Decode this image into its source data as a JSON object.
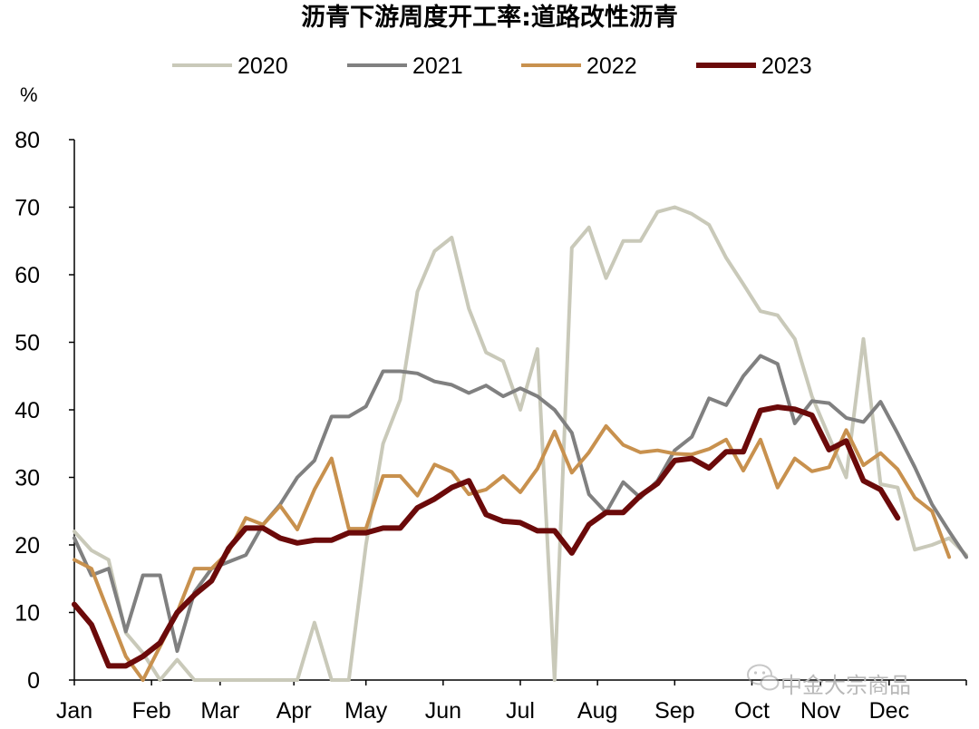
{
  "chart_data": {
    "type": "line",
    "title": "沥青下游周度开工率:道路改性沥青",
    "ylabel": "%",
    "ylim": [
      0,
      80
    ],
    "yticks": [
      0,
      10,
      20,
      30,
      40,
      50,
      60,
      70,
      80
    ],
    "x_range_weeks": [
      1,
      53
    ],
    "month_labels": [
      "Jan",
      "Feb",
      "Mar",
      "Apr",
      "May",
      "Jun",
      "Jul",
      "Aug",
      "Sep",
      "Oct",
      "Nov",
      "Dec"
    ],
    "month_start_week": [
      1,
      5.5,
      9.5,
      13.8,
      18,
      22.5,
      27,
      31.5,
      36,
      40.5,
      44.5,
      48.5
    ],
    "legend_position": "top",
    "grid": false,
    "x_unit": "week of year",
    "series": [
      {
        "name": "2020",
        "color": "#c9c9b9",
        "width": 4,
        "points": [
          [
            1,
            22
          ],
          [
            2,
            19.2
          ],
          [
            3,
            17.8
          ],
          [
            4,
            7
          ],
          [
            5,
            4
          ],
          [
            6,
            0
          ],
          [
            7,
            3
          ],
          [
            8,
            0
          ],
          [
            9,
            0
          ],
          [
            10,
            0
          ],
          [
            11,
            0
          ],
          [
            12,
            0
          ],
          [
            13,
            0
          ],
          [
            14,
            0
          ],
          [
            15,
            8.5
          ],
          [
            16,
            0
          ],
          [
            17,
            0
          ],
          [
            18,
            20
          ],
          [
            19,
            35
          ],
          [
            20,
            41.5
          ],
          [
            21,
            57.5
          ],
          [
            22,
            63.5
          ],
          [
            23,
            65.5
          ],
          [
            24,
            55
          ],
          [
            25,
            48.5
          ],
          [
            26,
            47.2
          ],
          [
            27,
            40
          ],
          [
            28,
            49
          ],
          [
            29,
            0
          ],
          [
            30,
            64
          ],
          [
            31,
            67
          ],
          [
            32,
            59.5
          ],
          [
            33,
            65
          ],
          [
            34,
            65
          ],
          [
            35,
            69.3
          ],
          [
            36,
            70
          ],
          [
            37,
            69
          ],
          [
            38,
            67.4
          ],
          [
            39,
            62.5
          ],
          [
            40,
            58.6
          ],
          [
            41,
            54.6
          ],
          [
            42,
            54
          ],
          [
            43,
            50.5
          ],
          [
            44,
            42
          ],
          [
            45,
            36
          ],
          [
            46,
            30
          ],
          [
            47,
            50.5
          ],
          [
            48,
            29
          ],
          [
            49,
            28.5
          ],
          [
            50,
            19.3
          ],
          [
            51,
            20
          ],
          [
            52,
            21
          ],
          [
            53,
            18.5
          ]
        ]
      },
      {
        "name": "2021",
        "color": "#808080",
        "width": 4,
        "points": [
          [
            1,
            21
          ],
          [
            2,
            15.5
          ],
          [
            3,
            16.5
          ],
          [
            4,
            7.2
          ],
          [
            5,
            15.5
          ],
          [
            6,
            15.5
          ],
          [
            7,
            4.3
          ],
          [
            8,
            13
          ],
          [
            9,
            16.5
          ],
          [
            10,
            17.5
          ],
          [
            11,
            18.5
          ],
          [
            12,
            23
          ],
          [
            13,
            26
          ],
          [
            14,
            30
          ],
          [
            15,
            32.5
          ],
          [
            16,
            39
          ],
          [
            17,
            39
          ],
          [
            18,
            40.5
          ],
          [
            19,
            45.7
          ],
          [
            20,
            45.7
          ],
          [
            21,
            45.4
          ],
          [
            22,
            44.2
          ],
          [
            23,
            43.7
          ],
          [
            24,
            42.5
          ],
          [
            25,
            43.6
          ],
          [
            26,
            42
          ],
          [
            27,
            43.2
          ],
          [
            28,
            42
          ],
          [
            29,
            40
          ],
          [
            30,
            36.6
          ],
          [
            31,
            27.5
          ],
          [
            32,
            24.8
          ],
          [
            33,
            29.3
          ],
          [
            34,
            27
          ],
          [
            35,
            29.5
          ],
          [
            36,
            34
          ],
          [
            37,
            36
          ],
          [
            38,
            41.7
          ],
          [
            39,
            40.7
          ],
          [
            40,
            45
          ],
          [
            41,
            48
          ],
          [
            42,
            46.8
          ],
          [
            43,
            38
          ],
          [
            44,
            41.3
          ],
          [
            45,
            41
          ],
          [
            46,
            38.8
          ],
          [
            47,
            38.2
          ],
          [
            48,
            41.2
          ],
          [
            49,
            36.5
          ],
          [
            50,
            31.5
          ],
          [
            51,
            26
          ],
          [
            52,
            22
          ],
          [
            53,
            18.2
          ]
        ]
      },
      {
        "name": "2022",
        "color": "#c8914e",
        "width": 4,
        "points": [
          [
            1,
            17.8
          ],
          [
            2,
            16.5
          ],
          [
            3,
            10
          ],
          [
            4,
            3.5
          ],
          [
            5,
            0
          ],
          [
            6,
            5
          ],
          [
            7,
            10
          ],
          [
            8,
            16.5
          ],
          [
            9,
            16.5
          ],
          [
            10,
            19
          ],
          [
            11,
            24
          ],
          [
            12,
            23
          ],
          [
            13,
            25.8
          ],
          [
            14,
            22.3
          ],
          [
            15,
            28.2
          ],
          [
            16,
            32.8
          ],
          [
            17,
            22.4
          ],
          [
            18,
            22.4
          ],
          [
            19,
            30.2
          ],
          [
            20,
            30.2
          ],
          [
            21,
            27.3
          ],
          [
            22,
            31.9
          ],
          [
            23,
            30.8
          ],
          [
            24,
            27.5
          ],
          [
            25,
            28.2
          ],
          [
            26,
            30.2
          ],
          [
            27,
            27.8
          ],
          [
            28,
            31.3
          ],
          [
            29,
            36.8
          ],
          [
            30,
            30.7
          ],
          [
            31,
            33.7
          ],
          [
            32,
            37.6
          ],
          [
            33,
            34.8
          ],
          [
            34,
            33.7
          ],
          [
            35,
            34
          ],
          [
            36,
            33.5
          ],
          [
            37,
            33.4
          ],
          [
            38,
            34.2
          ],
          [
            39,
            35.6
          ],
          [
            40,
            31
          ],
          [
            41,
            35.6
          ],
          [
            42,
            28.5
          ],
          [
            43,
            32.8
          ],
          [
            44,
            30.9
          ],
          [
            45,
            31.5
          ],
          [
            46,
            37
          ],
          [
            47,
            31.8
          ],
          [
            48,
            33.6
          ],
          [
            49,
            31.2
          ],
          [
            50,
            27
          ],
          [
            51,
            25
          ],
          [
            52,
            18.2
          ]
        ]
      },
      {
        "name": "2023",
        "color": "#6b0a0a",
        "width": 6,
        "points": [
          [
            1,
            11.2
          ],
          [
            2,
            8.2
          ],
          [
            3,
            2.1
          ],
          [
            4,
            2.1
          ],
          [
            5,
            3.5
          ],
          [
            6,
            5.5
          ],
          [
            7,
            10
          ],
          [
            8,
            12.6
          ],
          [
            9,
            14.7
          ],
          [
            10,
            19.5
          ],
          [
            11,
            22.5
          ],
          [
            12,
            22.5
          ],
          [
            13,
            21
          ],
          [
            14,
            20.3
          ],
          [
            15,
            20.7
          ],
          [
            16,
            20.7
          ],
          [
            17,
            21.8
          ],
          [
            18,
            21.8
          ],
          [
            19,
            22.5
          ],
          [
            20,
            22.5
          ],
          [
            21,
            25.5
          ],
          [
            22,
            26.8
          ],
          [
            23,
            28.5
          ],
          [
            24,
            29.5
          ],
          [
            25,
            24.5
          ],
          [
            26,
            23.5
          ],
          [
            27,
            23.3
          ],
          [
            28,
            22.1
          ],
          [
            29,
            22.1
          ],
          [
            30,
            18.8
          ],
          [
            31,
            23
          ],
          [
            32,
            24.8
          ],
          [
            33,
            24.8
          ],
          [
            34,
            27.3
          ],
          [
            35,
            29.1
          ],
          [
            36,
            32.5
          ],
          [
            37,
            32.8
          ],
          [
            38,
            31.4
          ],
          [
            39,
            33.8
          ],
          [
            40,
            33.8
          ],
          [
            41,
            39.9
          ],
          [
            42,
            40.4
          ],
          [
            43,
            40.1
          ],
          [
            44,
            39.2
          ],
          [
            45,
            34.1
          ],
          [
            46,
            35.4
          ],
          [
            47,
            29.5
          ],
          [
            48,
            28.2
          ],
          [
            49,
            24
          ]
        ]
      }
    ]
  },
  "watermark": {
    "text": "中金大宗商品",
    "icon": "wechat-icon"
  }
}
